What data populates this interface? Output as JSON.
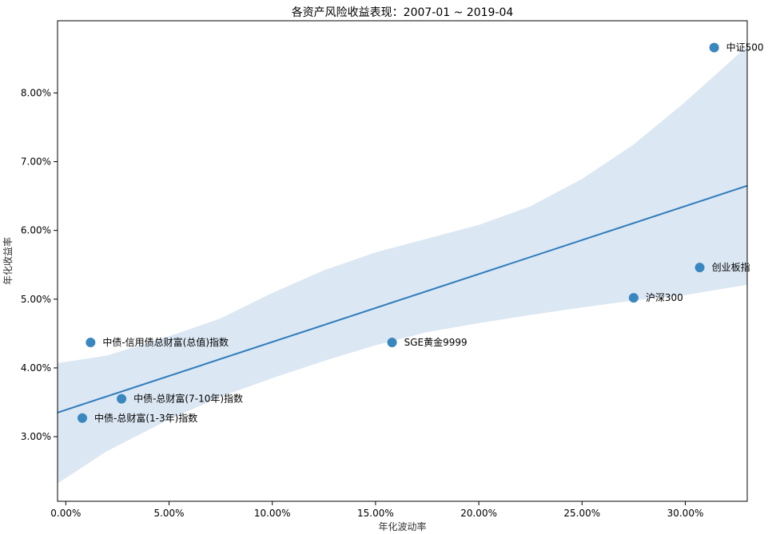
{
  "chart_data": {
    "type": "scatter",
    "title": "各资产风险收益表现：2007-01 ~ 2019-04",
    "xlabel": "年化波动率",
    "ylabel": "年化收益率",
    "xlim": [
      -0.004,
      0.33
    ],
    "ylim": [
      0.0206,
      0.0905
    ],
    "x_ticks": [
      0.0,
      0.05,
      0.1,
      0.15,
      0.2,
      0.25,
      0.3
    ],
    "x_tick_labels": [
      "0.00%",
      "5.00%",
      "10.00%",
      "15.00%",
      "20.00%",
      "25.00%",
      "30.00%"
    ],
    "y_ticks": [
      0.03,
      0.04,
      0.05,
      0.06,
      0.07,
      0.08
    ],
    "y_tick_labels": [
      "3.00%",
      "4.00%",
      "5.00%",
      "6.00%",
      "7.00%",
      "8.00%"
    ],
    "grid": false,
    "points": [
      {
        "label": "中证500",
        "x": 0.314,
        "y": 0.0866
      },
      {
        "label": "创业板指",
        "x": 0.307,
        "y": 0.0546
      },
      {
        "label": "沪深300",
        "x": 0.275,
        "y": 0.0502
      },
      {
        "label": "SGE黄金9999",
        "x": 0.158,
        "y": 0.0437
      },
      {
        "label": "中债-信用债总财富(总值)指数",
        "x": 0.012,
        "y": 0.0437
      },
      {
        "label": "中债-总财富(7-10年)指数",
        "x": 0.027,
        "y": 0.0355
      },
      {
        "label": "中债-总财富(1-3年)指数",
        "x": 0.008,
        "y": 0.0327
      }
    ],
    "regression_line": {
      "x": [
        -0.004,
        0.33
      ],
      "y": [
        0.0335,
        0.0665
      ]
    },
    "confidence_band": {
      "x": [
        -0.004,
        0.02,
        0.05,
        0.075,
        0.1,
        0.125,
        0.15,
        0.175,
        0.2,
        0.225,
        0.25,
        0.275,
        0.3,
        0.33
      ],
      "upper": [
        0.0407,
        0.0418,
        0.0446,
        0.0472,
        0.0509,
        0.0542,
        0.0568,
        0.0588,
        0.0608,
        0.0635,
        0.0675,
        0.0725,
        0.0787,
        0.0868
      ],
      "lower": [
        0.0232,
        0.0279,
        0.0325,
        0.0358,
        0.0385,
        0.041,
        0.0433,
        0.0452,
        0.0465,
        0.0477,
        0.0488,
        0.0498,
        0.0506,
        0.0521
      ]
    },
    "colors": {
      "points": "#3a87bf",
      "line": "#2f7cbc",
      "band": "#dbe7f3"
    }
  }
}
